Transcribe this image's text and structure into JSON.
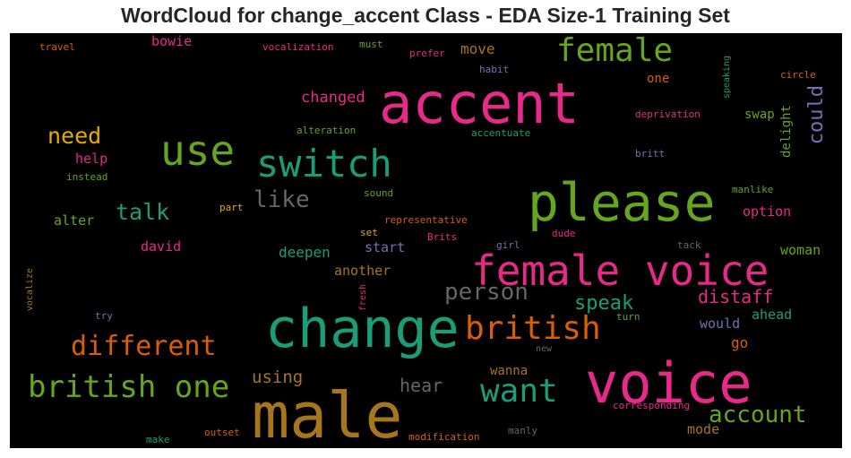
{
  "chart_data": {
    "type": "wordcloud",
    "title": "WordCloud for change_accent Class - EDA Size-1 Training Set",
    "background": "#000000",
    "words": [
      {
        "text": "accent",
        "color": "#e7298a"
      },
      {
        "text": "male",
        "color": "#a6761d"
      },
      {
        "text": "change",
        "color": "#1b9e77"
      },
      {
        "text": "voice",
        "color": "#e7298a"
      },
      {
        "text": "please",
        "color": "#66a61e"
      },
      {
        "text": "female voice",
        "color": "#e7298a"
      },
      {
        "text": "switch",
        "color": "#1b9e77"
      },
      {
        "text": "use",
        "color": "#66a61e"
      },
      {
        "text": "female",
        "color": "#66a61e"
      },
      {
        "text": "british",
        "color": "#d95f02"
      },
      {
        "text": "british one",
        "color": "#66a61e"
      },
      {
        "text": "different",
        "color": "#d95f02"
      },
      {
        "text": "want",
        "color": "#1b9e77"
      },
      {
        "text": "account",
        "color": "#66a61e"
      },
      {
        "text": "person",
        "color": "#666666"
      },
      {
        "text": "like",
        "color": "#666666"
      },
      {
        "text": "need",
        "color": "#e6ab02"
      },
      {
        "text": "talk",
        "color": "#1b9e77"
      },
      {
        "text": "speak",
        "color": "#1b9e77"
      },
      {
        "text": "distaff",
        "color": "#e7298a"
      },
      {
        "text": "could",
        "color": "#7570b3"
      },
      {
        "text": "hear",
        "color": "#666666"
      },
      {
        "text": "using",
        "color": "#a6761d"
      },
      {
        "text": "changed",
        "color": "#e7298a"
      },
      {
        "text": "move",
        "color": "#a6761d"
      },
      {
        "text": "bowie",
        "color": "#e7298a"
      },
      {
        "text": "alter",
        "color": "#66a61e"
      },
      {
        "text": "help",
        "color": "#e7298a"
      },
      {
        "text": "david",
        "color": "#e7298a"
      },
      {
        "text": "deepen",
        "color": "#1b9e77"
      },
      {
        "text": "start",
        "color": "#7570b3"
      },
      {
        "text": "another",
        "color": "#a6761d"
      },
      {
        "text": "option",
        "color": "#e7298a"
      },
      {
        "text": "woman",
        "color": "#66a61e"
      },
      {
        "text": "would",
        "color": "#7570b3"
      },
      {
        "text": "ahead",
        "color": "#1b9e77"
      },
      {
        "text": "go",
        "color": "#d95f02"
      },
      {
        "text": "mode",
        "color": "#a6761d"
      },
      {
        "text": "wanna",
        "color": "#a6761d"
      },
      {
        "text": "swap",
        "color": "#66a61e"
      },
      {
        "text": "delight",
        "color": "#66a61e"
      },
      {
        "text": "one",
        "color": "#d95f02"
      },
      {
        "text": "travel",
        "color": "#d95f02"
      },
      {
        "text": "vocalization",
        "color": "#e7298a"
      },
      {
        "text": "must",
        "color": "#66a61e"
      },
      {
        "text": "prefer",
        "color": "#e7298a"
      },
      {
        "text": "habit",
        "color": "#7570b3"
      },
      {
        "text": "speaking",
        "color": "#1b9e77"
      },
      {
        "text": "circle",
        "color": "#d95f02"
      },
      {
        "text": "deprivation",
        "color": "#e7298a"
      },
      {
        "text": "alteration",
        "color": "#66a61e"
      },
      {
        "text": "accentuate",
        "color": "#1b9e77"
      },
      {
        "text": "britt",
        "color": "#7570b3"
      },
      {
        "text": "instead",
        "color": "#66a61e"
      },
      {
        "text": "sound",
        "color": "#66a61e"
      },
      {
        "text": "manlike",
        "color": "#66a61e"
      },
      {
        "text": "part",
        "color": "#e6ab02"
      },
      {
        "text": "representative",
        "color": "#d95f02"
      },
      {
        "text": "set",
        "color": "#e6ab02"
      },
      {
        "text": "Brits",
        "color": "#e7298a"
      },
      {
        "text": "girl",
        "color": "#7570b3"
      },
      {
        "text": "dude",
        "color": "#e7298a"
      },
      {
        "text": "tack",
        "color": "#666666"
      },
      {
        "text": "vocalize",
        "color": "#a6761d"
      },
      {
        "text": "fresh",
        "color": "#e7298a"
      },
      {
        "text": "try",
        "color": "#7570b3"
      },
      {
        "text": "turn",
        "color": "#66a61e"
      },
      {
        "text": "new",
        "color": "#666666"
      },
      {
        "text": "corresponding",
        "color": "#e7298a"
      },
      {
        "text": "outset",
        "color": "#d95f02"
      },
      {
        "text": "make",
        "color": "#1b9e77"
      },
      {
        "text": "modification",
        "color": "#d95f02"
      },
      {
        "text": "manly",
        "color": "#666666"
      }
    ]
  }
}
